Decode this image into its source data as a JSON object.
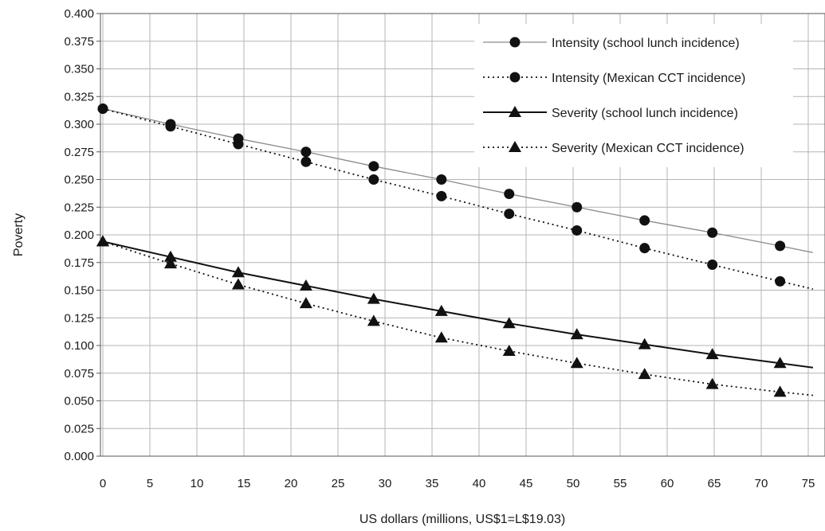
{
  "chart_data": {
    "type": "line",
    "title": "",
    "xlabel": "US dollars (millions, US$1=L$19.03)",
    "ylabel": "Poverty",
    "xlim": [
      0,
      75
    ],
    "ylim": [
      0,
      0.4
    ],
    "x_ticks": [
      "0",
      "5",
      "10",
      "15",
      "20",
      "25",
      "30",
      "35",
      "40",
      "45",
      "50",
      "55",
      "60",
      "65",
      "70",
      "75"
    ],
    "y_ticks": [
      "0.000",
      "0.025",
      "0.050",
      "0.075",
      "0.100",
      "0.125",
      "0.150",
      "0.175",
      "0.200",
      "0.225",
      "0.250",
      "0.275",
      "0.300",
      "0.325",
      "0.350",
      "0.375",
      "0.400"
    ],
    "grid": true,
    "legend_position": "top-right",
    "series": [
      {
        "name": "Intensity (school lunch incidence)",
        "marker": "circle",
        "line": "solid-thin",
        "x": [
          0,
          7.2,
          14.4,
          21.6,
          28.8,
          36,
          43.2,
          50.4,
          57.6,
          64.8,
          72,
          75.5
        ],
        "values": [
          0.314,
          0.3,
          0.287,
          0.275,
          0.262,
          0.25,
          0.237,
          0.225,
          0.213,
          0.202,
          0.19,
          0.184
        ]
      },
      {
        "name": "Intensity (Mexican CCT incidence)",
        "marker": "circle",
        "line": "dotted",
        "x": [
          0,
          7.2,
          14.4,
          21.6,
          28.8,
          36,
          43.2,
          50.4,
          57.6,
          64.8,
          72,
          75.5
        ],
        "values": [
          0.314,
          0.298,
          0.282,
          0.266,
          0.25,
          0.235,
          0.219,
          0.204,
          0.188,
          0.173,
          0.158,
          0.151
        ]
      },
      {
        "name": "Severity (school lunch incidence)",
        "marker": "triangle",
        "line": "solid-thick",
        "x": [
          0,
          7.2,
          14.4,
          21.6,
          28.8,
          36,
          43.2,
          50.4,
          57.6,
          64.8,
          72,
          75.5
        ],
        "values": [
          0.194,
          0.18,
          0.166,
          0.154,
          0.142,
          0.131,
          0.12,
          0.11,
          0.101,
          0.092,
          0.084,
          0.08
        ]
      },
      {
        "name": "Severity (Mexican CCT incidence)",
        "marker": "triangle",
        "line": "dotted",
        "x": [
          0,
          7.2,
          14.4,
          21.6,
          28.8,
          36,
          43.2,
          50.4,
          57.6,
          64.8,
          72,
          75.5
        ],
        "values": [
          0.194,
          0.174,
          0.155,
          0.138,
          0.122,
          0.107,
          0.095,
          0.084,
          0.074,
          0.065,
          0.058,
          0.055
        ]
      }
    ]
  }
}
